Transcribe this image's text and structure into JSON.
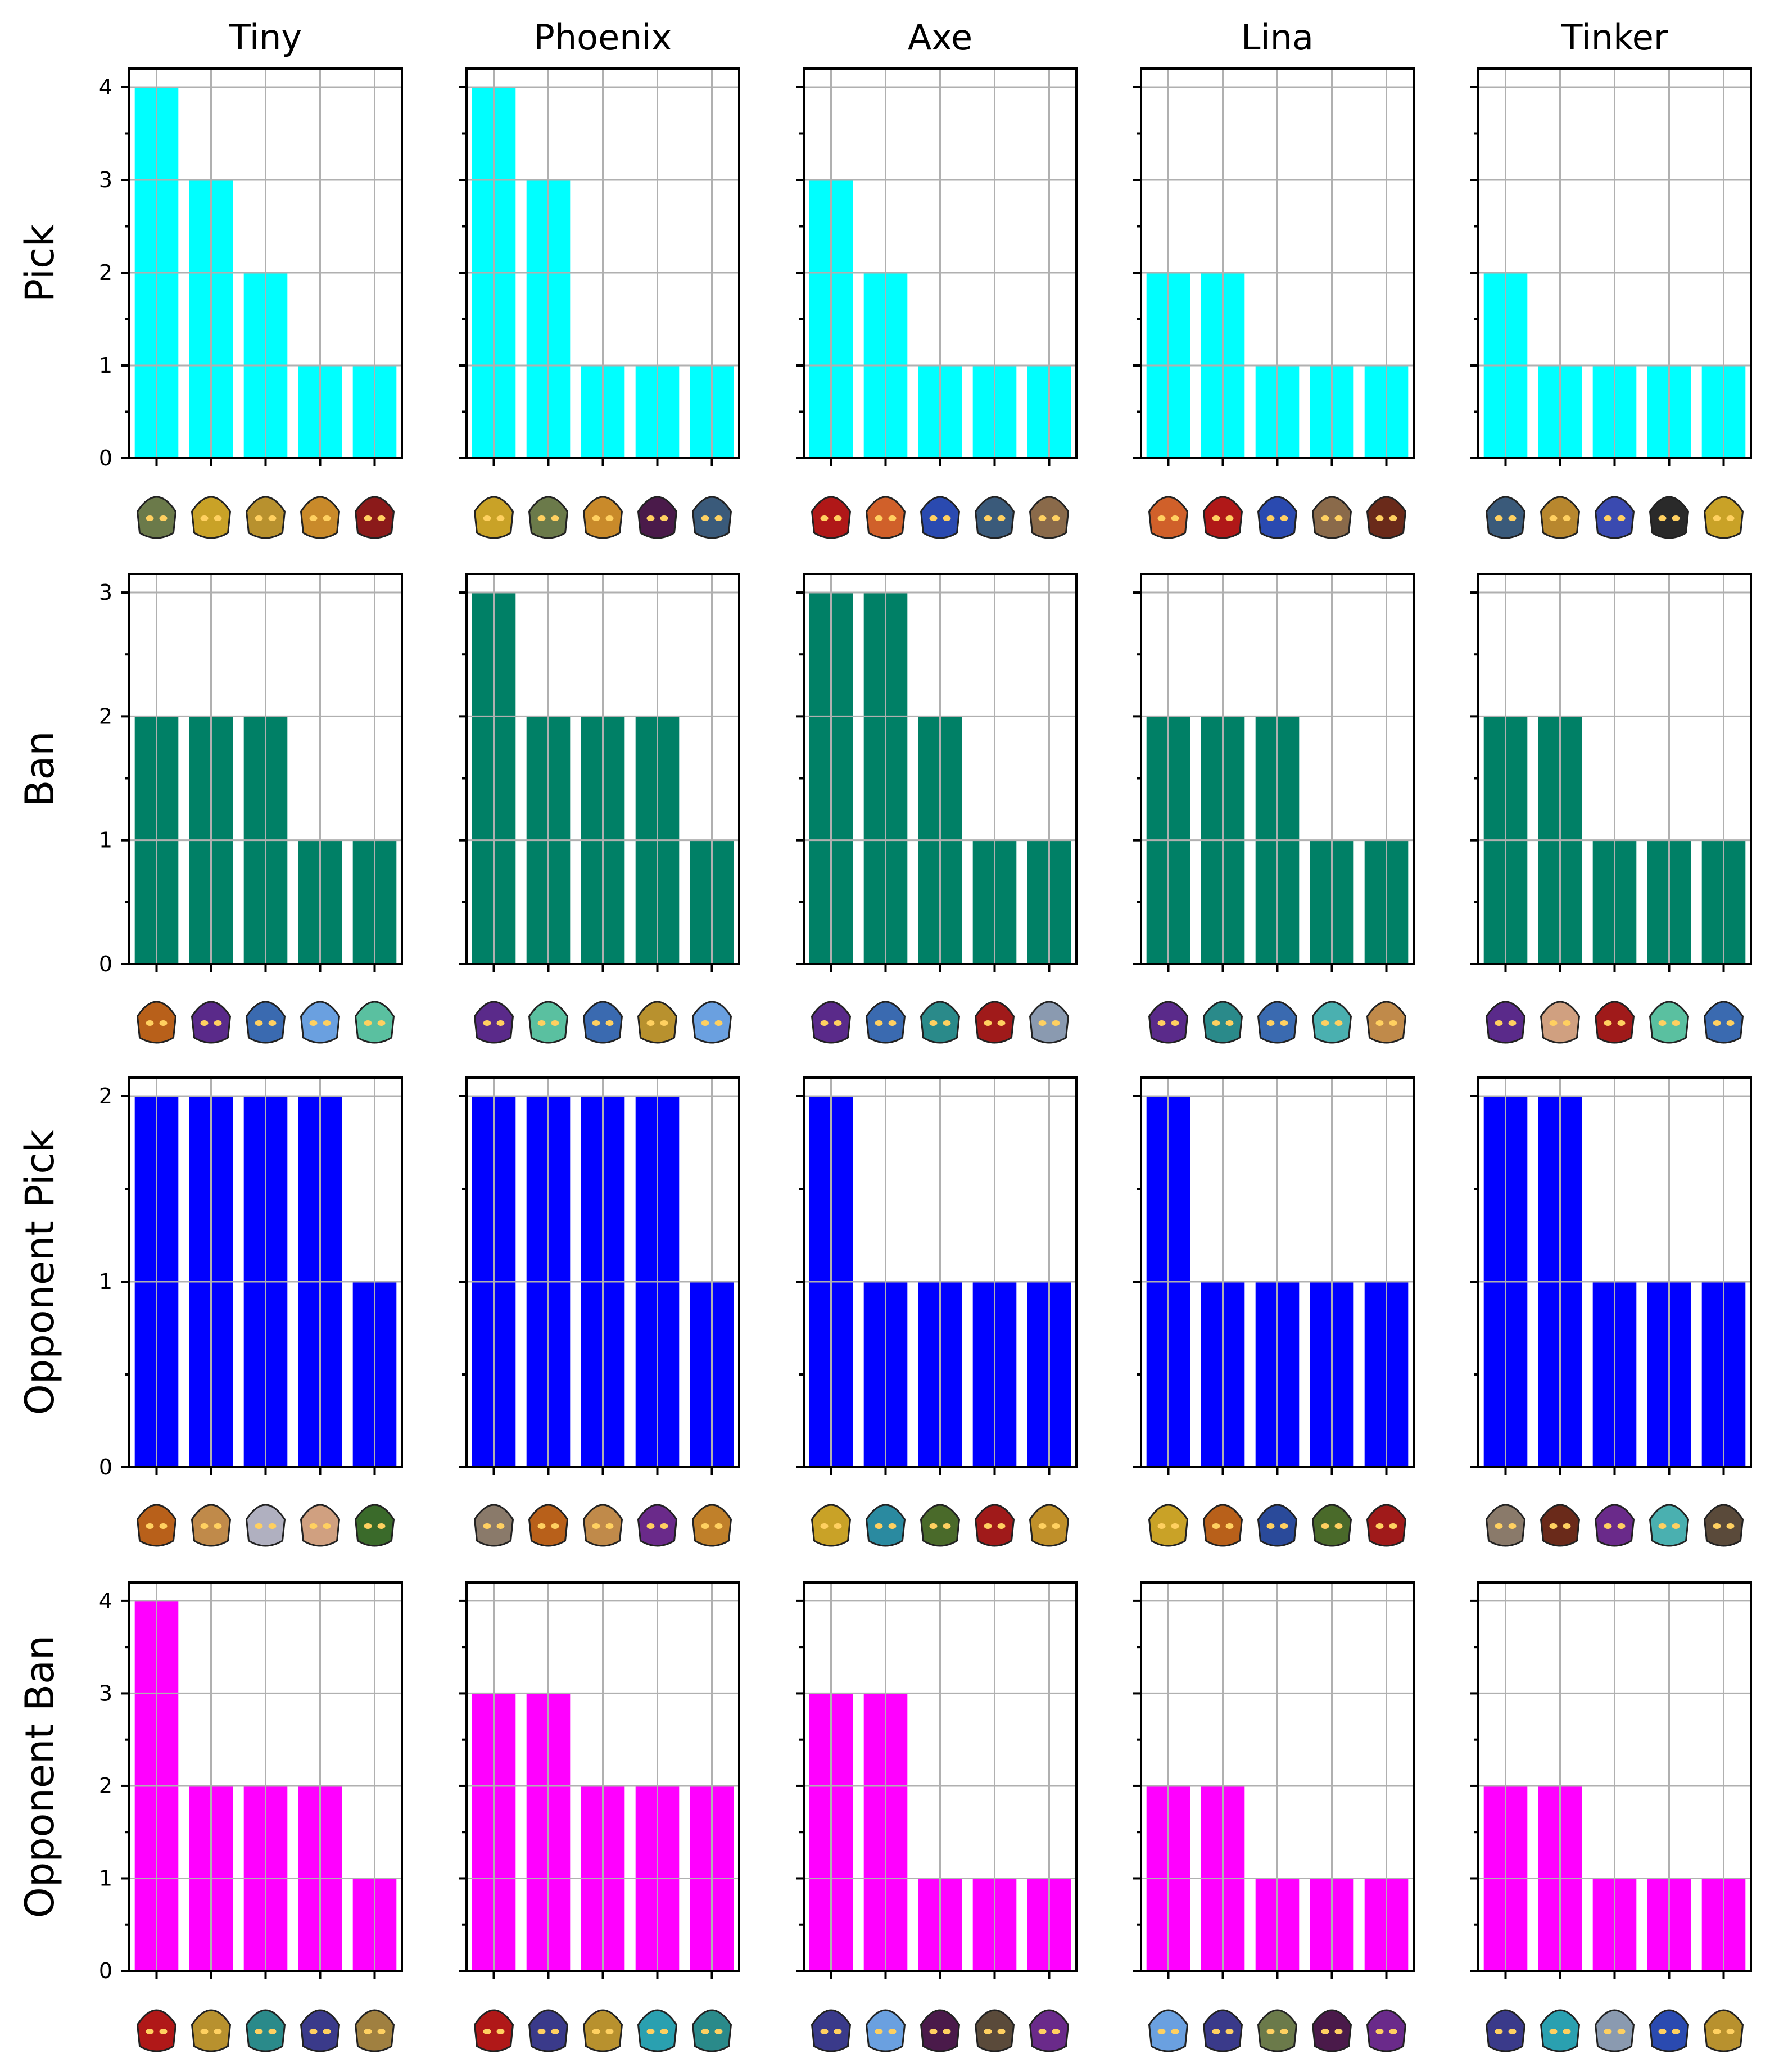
{
  "chart_data": {
    "type": "bar",
    "layout": "grid of small bar charts, 4 rows by 5 columns; x-axis ticks show hero portrait icons",
    "grid": true,
    "columns": [
      "Tiny",
      "Phoenix",
      "Axe",
      "Lina",
      "Tinker"
    ],
    "rows": [
      {
        "label": "Pick",
        "color": "#00FFFF",
        "ylim": [
          0,
          4.2
        ],
        "yticks": [
          0,
          1,
          2,
          3,
          4
        ],
        "panels": [
          {
            "values": [
              4,
              3,
              2,
              1,
              1
            ],
            "icon_colors": [
              "#6b7a4a",
              "#c9a227",
              "#b8912e",
              "#c98a2a",
              "#8b1a1a"
            ]
          },
          {
            "values": [
              4,
              3,
              1,
              1,
              1
            ],
            "icon_colors": [
              "#c9a227",
              "#6b7a4a",
              "#c98a2a",
              "#4a1a4a",
              "#3a5a7a"
            ]
          },
          {
            "values": [
              3,
              2,
              1,
              1,
              1
            ],
            "icon_colors": [
              "#b01818",
              "#d0602a",
              "#2a4ab0",
              "#3a5a7a",
              "#8a6a4a"
            ]
          },
          {
            "values": [
              2,
              2,
              1,
              1,
              1
            ],
            "icon_colors": [
              "#d0602a",
              "#b01818",
              "#2a4ab0",
              "#8a6a4a",
              "#6a2a1a"
            ]
          },
          {
            "values": [
              2,
              1,
              1,
              1,
              1
            ],
            "icon_colors": [
              "#3a5a7a",
              "#b8872e",
              "#3a4ab0",
              "#2a2a2a",
              "#c9a227"
            ]
          }
        ]
      },
      {
        "label": "Ban",
        "color": "#008066",
        "ylim": [
          0,
          3.15
        ],
        "yticks": [
          0,
          1,
          2,
          3
        ],
        "panels": [
          {
            "values": [
              2,
              2,
              2,
              1,
              1
            ],
            "icon_colors": [
              "#b8601a",
              "#5a2a8a",
              "#3a6ab0",
              "#6aa0e0",
              "#5ac0a0"
            ]
          },
          {
            "values": [
              3,
              2,
              2,
              2,
              1
            ],
            "icon_colors": [
              "#5a2a8a",
              "#5ac0a0",
              "#3a6ab0",
              "#b8912e",
              "#6aa0e0"
            ]
          },
          {
            "values": [
              3,
              3,
              2,
              1,
              1
            ],
            "icon_colors": [
              "#5a2a8a",
              "#3a6ab0",
              "#2a8a8a",
              "#a01a1a",
              "#8a9ab0"
            ]
          },
          {
            "values": [
              2,
              2,
              2,
              1,
              1
            ],
            "icon_colors": [
              "#5a2a8a",
              "#2a8a8a",
              "#3a6ab0",
              "#4ab0b0",
              "#c08a4a"
            ]
          },
          {
            "values": [
              2,
              2,
              1,
              1,
              1
            ],
            "icon_colors": [
              "#5a2a8a",
              "#d0a080",
              "#a01a1a",
              "#5ac0a0",
              "#3a6ab0"
            ]
          }
        ]
      },
      {
        "label": "Opponent Pick",
        "color": "#0000FF",
        "ylim": [
          0,
          2.1
        ],
        "yticks": [
          0,
          1,
          2
        ],
        "panels": [
          {
            "values": [
              2,
              2,
              2,
              2,
              1
            ],
            "icon_colors": [
              "#b8601a",
              "#c08a4a",
              "#b0b0c0",
              "#d0a080",
              "#3a6a2a"
            ]
          },
          {
            "values": [
              2,
              2,
              2,
              2,
              1
            ],
            "icon_colors": [
              "#8a7a6a",
              "#b8601a",
              "#c08a4a",
              "#6a2a8a",
              "#c0802a"
            ]
          },
          {
            "values": [
              2,
              1,
              1,
              1,
              1
            ],
            "icon_colors": [
              "#c9a227",
              "#2a8aa0",
              "#4a6a2a",
              "#a01a1a",
              "#c0902a"
            ]
          },
          {
            "values": [
              2,
              1,
              1,
              1,
              1
            ],
            "icon_colors": [
              "#c9a227",
              "#b8601a",
              "#2a4a9a",
              "#4a6a2a",
              "#a01a1a"
            ]
          },
          {
            "values": [
              2,
              2,
              1,
              1,
              1
            ],
            "icon_colors": [
              "#8a7a6a",
              "#6a2a1a",
              "#6a2a8a",
              "#4ab0b0",
              "#5a4a3a"
            ]
          }
        ]
      },
      {
        "label": "Opponent Ban",
        "color": "#FF00FF",
        "ylim": [
          0,
          4.2
        ],
        "yticks": [
          0,
          1,
          2,
          3,
          4
        ],
        "panels": [
          {
            "values": [
              4,
              2,
              2,
              2,
              1
            ],
            "icon_colors": [
              "#b01818",
              "#b8912e",
              "#2a8a8a",
              "#3a3a8a",
              "#a08040"
            ]
          },
          {
            "values": [
              3,
              3,
              2,
              2,
              2
            ],
            "icon_colors": [
              "#b01818",
              "#3a3a8a",
              "#b8912e",
              "#2aa0b0",
              "#2a8a8a"
            ]
          },
          {
            "values": [
              3,
              3,
              1,
              1,
              1
            ],
            "icon_colors": [
              "#3a3a8a",
              "#6aa0e0",
              "#4a1a4a",
              "#5a4a3a",
              "#6a2a8a"
            ]
          },
          {
            "values": [
              2,
              2,
              1,
              1,
              1
            ],
            "icon_colors": [
              "#6aa0e0",
              "#3a3a8a",
              "#6b7a4a",
              "#4a1a4a",
              "#6a2a8a"
            ]
          },
          {
            "values": [
              2,
              2,
              1,
              1,
              1
            ],
            "icon_colors": [
              "#3a3a8a",
              "#2aa0b0",
              "#8a9ab0",
              "#2a4ab0",
              "#b8912e"
            ]
          }
        ]
      }
    ]
  }
}
